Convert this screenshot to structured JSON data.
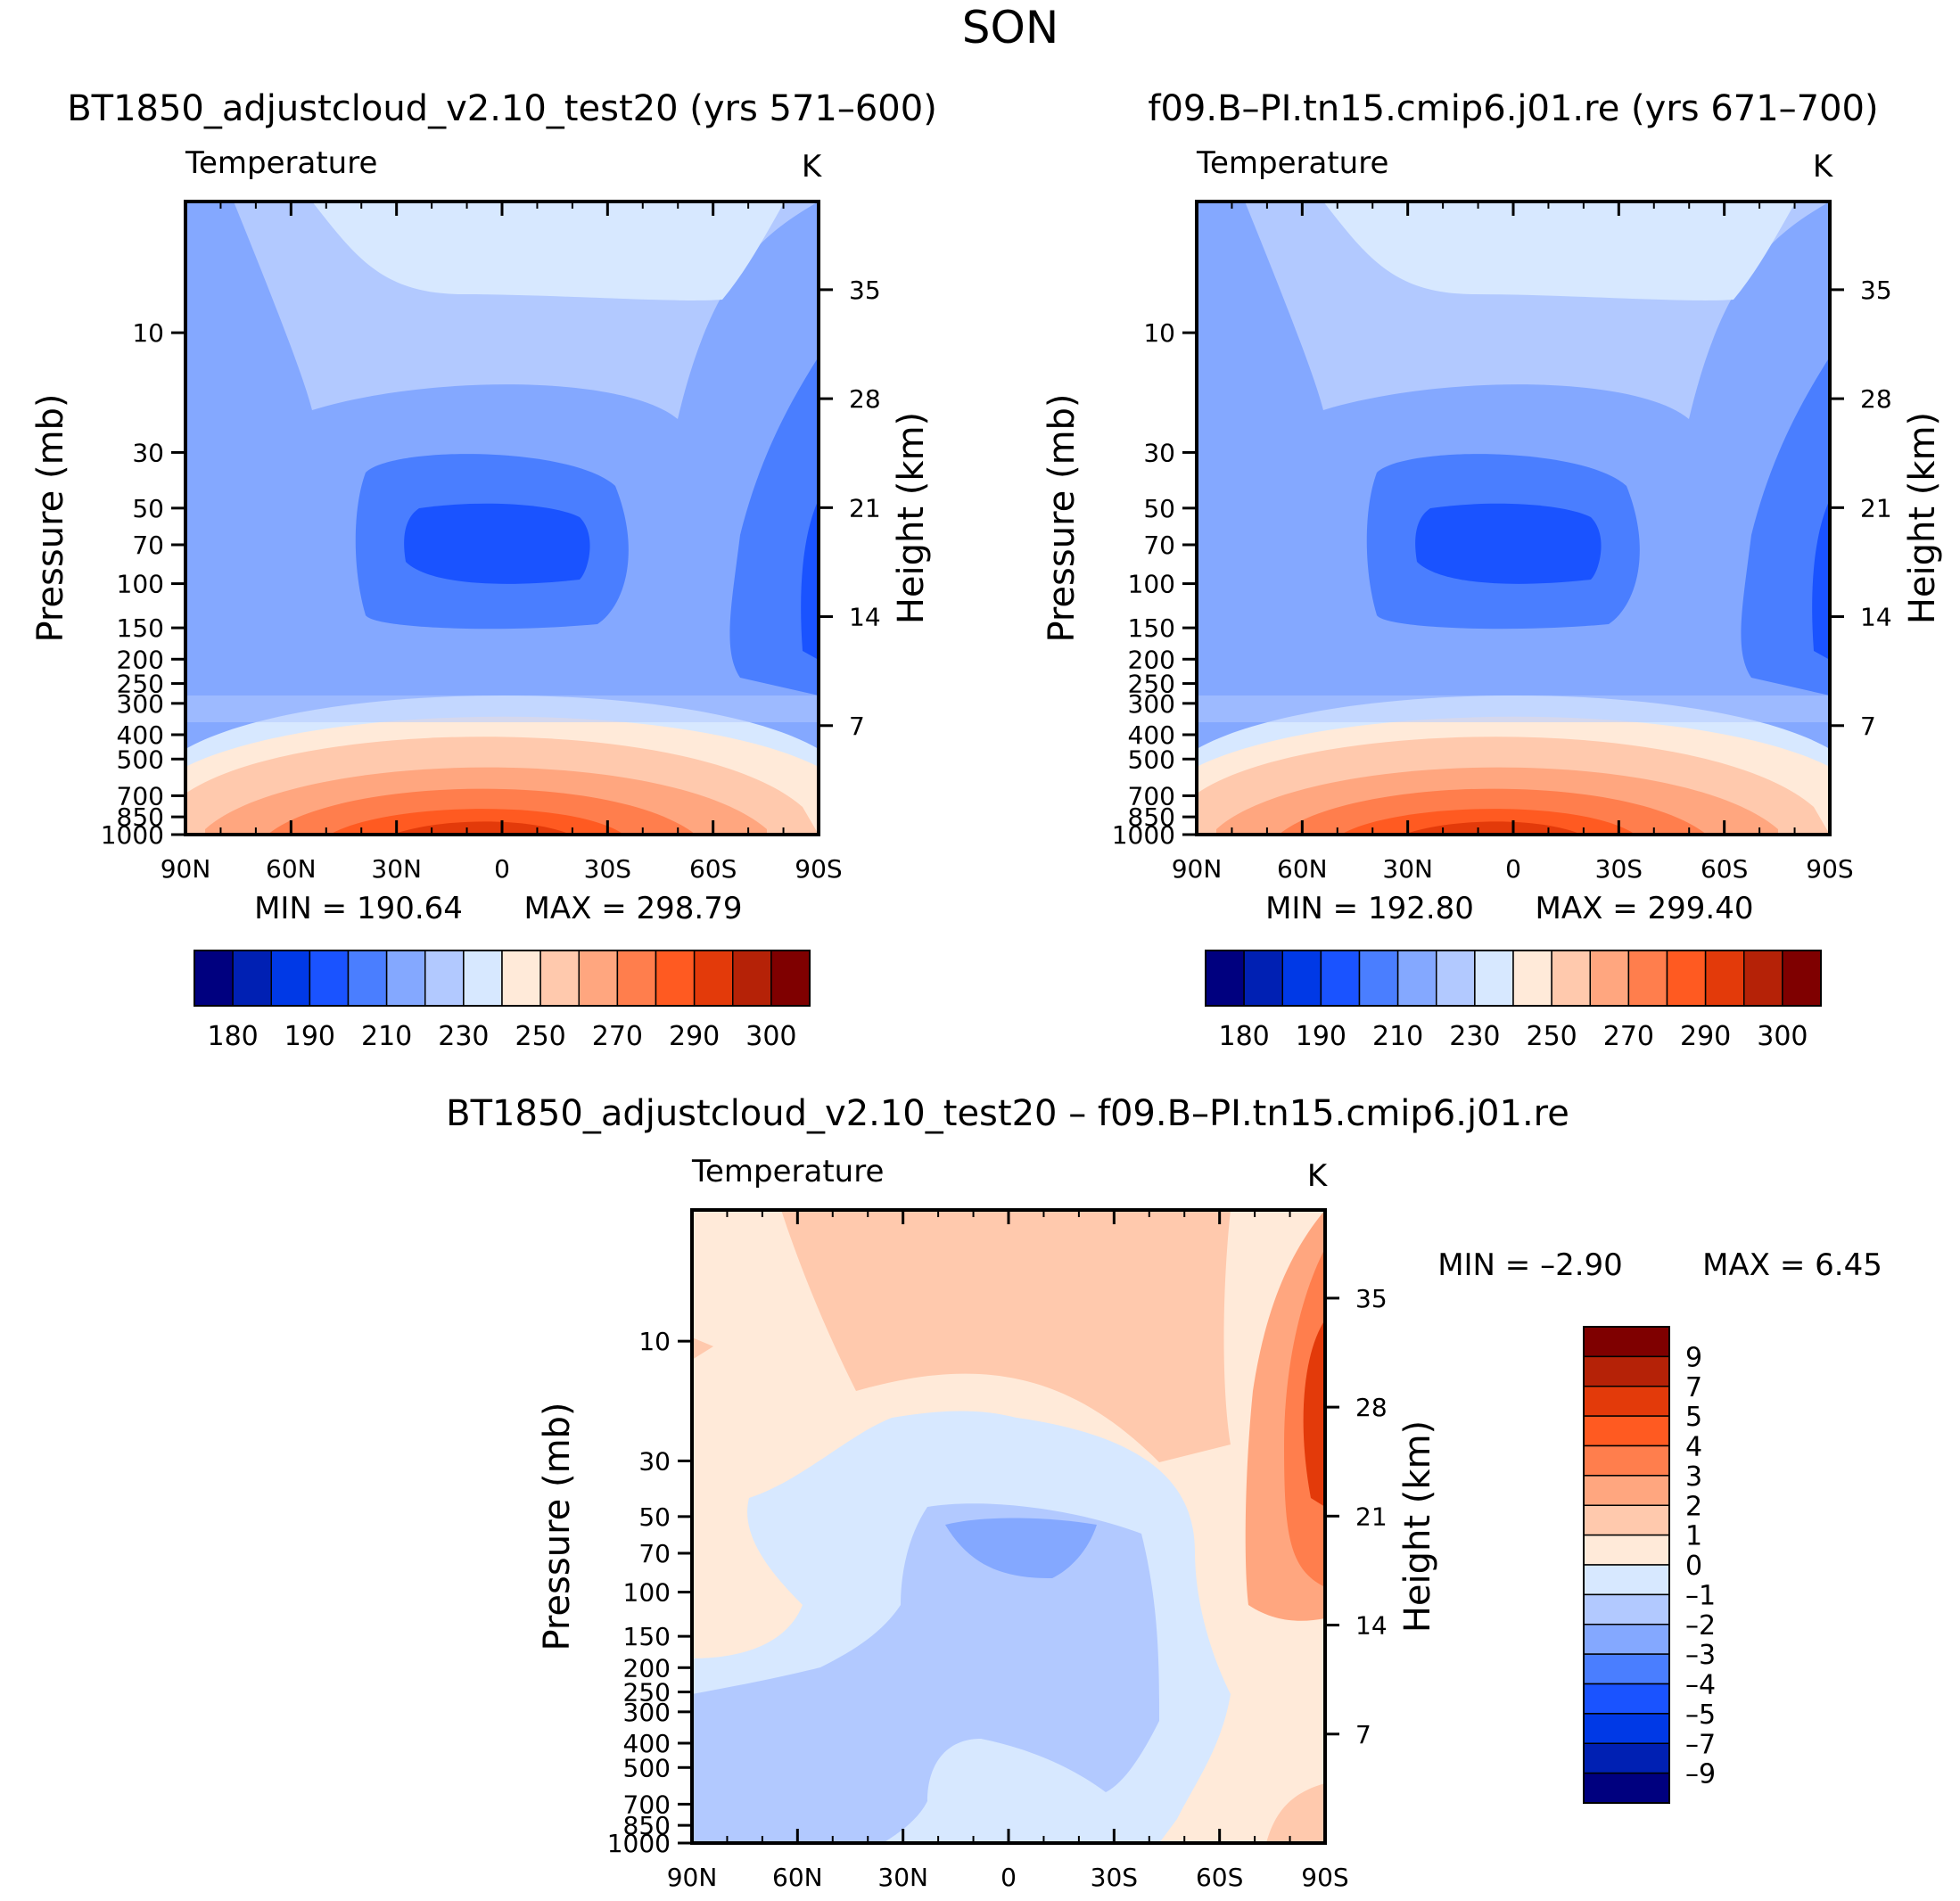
{
  "figure": {
    "season": "SON"
  },
  "colors": {
    "abs_palette": [
      "#00007f",
      "#0020b3",
      "#0039e6",
      "#1a53ff",
      "#4a7eff",
      "#84a8ff",
      "#b2c9ff",
      "#d7e8ff",
      "#ffead9",
      "#ffc9ad",
      "#ffa67f",
      "#ff7e4d",
      "#ff5a21",
      "#e33a0a",
      "#b52207",
      "#7f0000"
    ],
    "diff_palette": [
      "#00007f",
      "#0020b3",
      "#0039e6",
      "#1a53ff",
      "#4a7eff",
      "#84a8ff",
      "#b2c9ff",
      "#d7e8ff",
      "#ffead9",
      "#ffc9ad",
      "#ffa67f",
      "#ff7e4d",
      "#ff5a21",
      "#e33a0a",
      "#b52207",
      "#7f0000"
    ]
  },
  "chart_data": [
    {
      "type": "heatmap",
      "id": "top-left",
      "title": "BT1850_adjustcloud_v2.10_test20 (yrs 571–600)",
      "variable": "Temperature",
      "units": "K",
      "ylabel": "Pressure (mb)",
      "ylabel_right": "Height (km)",
      "x_ticks": [
        "90N",
        "60N",
        "30N",
        "0",
        "30S",
        "60S",
        "90S"
      ],
      "x_range": [
        90,
        -90
      ],
      "p_ticks": [
        10,
        30,
        50,
        70,
        100,
        150,
        200,
        250,
        300,
        400,
        500,
        700,
        850,
        1000
      ],
      "p_range": [
        3,
        1000
      ],
      "h_ticks": [
        35,
        28,
        21,
        14,
        7
      ],
      "min_label": "MIN = 190.64",
      "max_label": "MAX = 298.79",
      "min": 190.64,
      "max": 298.79,
      "levels": [
        180,
        185,
        190,
        200,
        210,
        220,
        230,
        240,
        250,
        260,
        270,
        280,
        290,
        295,
        300
      ],
      "colorbar_labels": [
        "180",
        "190",
        "210",
        "230",
        "250",
        "270",
        "290",
        "300"
      ]
    },
    {
      "type": "heatmap",
      "id": "top-right",
      "title": "f09.B–PI.tn15.cmip6.j01.re (yrs 671–700)",
      "variable": "Temperature",
      "units": "K",
      "ylabel": "Pressure (mb)",
      "ylabel_right": "Height (km)",
      "x_ticks": [
        "90N",
        "60N",
        "30N",
        "0",
        "30S",
        "60S",
        "90S"
      ],
      "x_range": [
        90,
        -90
      ],
      "p_ticks": [
        10,
        30,
        50,
        70,
        100,
        150,
        200,
        250,
        300,
        400,
        500,
        700,
        850,
        1000
      ],
      "p_range": [
        3,
        1000
      ],
      "h_ticks": [
        35,
        28,
        21,
        14,
        7
      ],
      "min_label": "MIN = 192.80",
      "max_label": "MAX = 299.40",
      "min": 192.8,
      "max": 299.4,
      "levels": [
        180,
        185,
        190,
        200,
        210,
        220,
        230,
        240,
        250,
        260,
        270,
        280,
        290,
        295,
        300
      ],
      "colorbar_labels": [
        "180",
        "190",
        "210",
        "230",
        "250",
        "270",
        "290",
        "300"
      ]
    },
    {
      "type": "heatmap",
      "id": "bottom-diff",
      "title": "BT1850_adjustcloud_v2.10_test20 – f09.B–PI.tn15.cmip6.j01.re",
      "variable": "Temperature",
      "units": "K",
      "ylabel": "Pressure (mb)",
      "ylabel_right": "Height (km)",
      "x_ticks": [
        "90N",
        "60N",
        "30N",
        "0",
        "30S",
        "60S",
        "90S"
      ],
      "x_range": [
        90,
        -90
      ],
      "p_ticks": [
        10,
        30,
        50,
        70,
        100,
        150,
        200,
        250,
        300,
        400,
        500,
        700,
        850,
        1000
      ],
      "p_range": [
        3,
        1000
      ],
      "h_ticks": [
        35,
        28,
        21,
        14,
        7
      ],
      "min_label": "MIN = –2.90",
      "max_label": "MAX = 6.45",
      "min": -2.9,
      "max": 6.45,
      "levels": [
        -9,
        -7,
        -5,
        -4,
        -3,
        -2,
        -1,
        0,
        1,
        2,
        3,
        4,
        5,
        7,
        9
      ],
      "colorbar_labels": [
        "9",
        "7",
        "5",
        "4",
        "3",
        "2",
        "1",
        "0",
        "–1",
        "–2",
        "–3",
        "–4",
        "–5",
        "–7",
        "–9"
      ]
    }
  ]
}
